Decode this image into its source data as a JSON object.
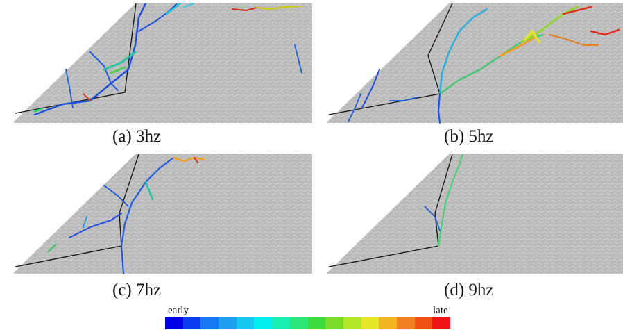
{
  "panels": [
    {
      "caption": "(a) 3hz"
    },
    {
      "caption": "(b) 5hz"
    },
    {
      "caption": "(c) 7hz"
    },
    {
      "caption": "(d) 9hz"
    }
  ],
  "legend": {
    "start_label": "early",
    "end_label": "late",
    "colors": [
      "#0000e6",
      "#0a3cf0",
      "#1478f0",
      "#1ea0f0",
      "#14c8f0",
      "#00f0f0",
      "#14f0b4",
      "#28e678",
      "#3cdc3c",
      "#78dc28",
      "#b4e628",
      "#e6e628",
      "#f0b41e",
      "#f0821e",
      "#f05014",
      "#f01414"
    ]
  }
}
